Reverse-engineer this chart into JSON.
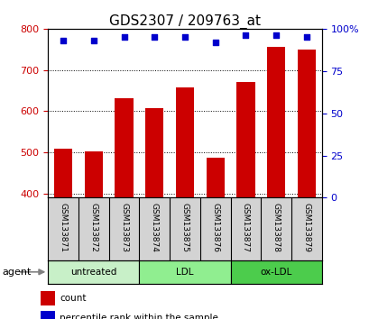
{
  "title": "GDS2307 / 209763_at",
  "samples": [
    "GSM133871",
    "GSM133872",
    "GSM133873",
    "GSM133874",
    "GSM133875",
    "GSM133876",
    "GSM133877",
    "GSM133878",
    "GSM133879"
  ],
  "counts": [
    510,
    503,
    632,
    608,
    658,
    488,
    670,
    757,
    750
  ],
  "percentiles": [
    93,
    93,
    95,
    95,
    95,
    92,
    96,
    96,
    95
  ],
  "groups": [
    {
      "label": "untreated",
      "indices": [
        0,
        1,
        2
      ],
      "color": "#c8f0c8"
    },
    {
      "label": "LDL",
      "indices": [
        3,
        4,
        5
      ],
      "color": "#90ee90"
    },
    {
      "label": "ox-LDL",
      "indices": [
        6,
        7,
        8
      ],
      "color": "#4ccc4c"
    }
  ],
  "bar_color": "#cc0000",
  "dot_color": "#0000cc",
  "ylim_left": [
    390,
    800
  ],
  "ylim_right": [
    0,
    100
  ],
  "yticks_left": [
    400,
    500,
    600,
    700,
    800
  ],
  "yticks_right": [
    0,
    25,
    50,
    75,
    100
  ],
  "grid_color": "#000000",
  "background_color": "#ffffff",
  "plot_bg": "#ffffff",
  "tick_area_bg": "#d3d3d3",
  "agent_label": "agent",
  "legend_count_label": "count",
  "legend_pct_label": "percentile rank within the sample",
  "title_fontsize": 11,
  "tick_fontsize": 8
}
